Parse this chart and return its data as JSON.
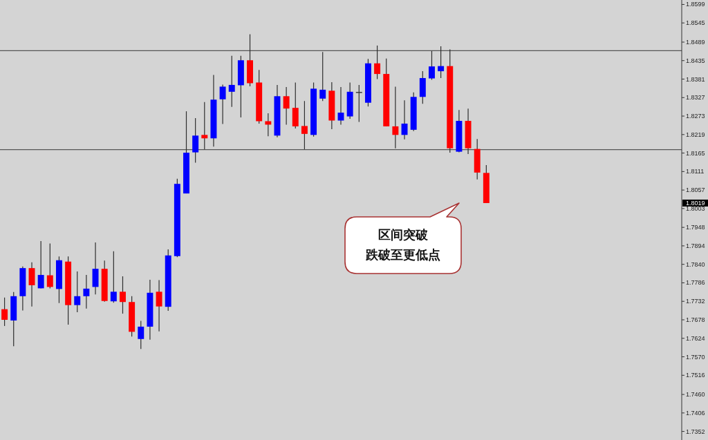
{
  "chart_data": {
    "type": "candlestick",
    "categories": [
      null,
      null,
      null,
      null,
      null,
      null,
      null,
      null,
      null,
      null,
      null,
      null,
      null,
      null,
      null,
      null,
      null,
      null,
      null,
      null,
      null,
      null,
      null,
      null,
      null,
      null,
      null,
      null,
      null,
      null,
      null,
      null,
      null,
      null,
      null,
      null,
      null,
      null,
      null,
      null,
      null,
      null,
      null,
      null,
      null,
      null,
      null,
      null,
      null,
      null,
      null,
      null,
      null,
      null,
      null,
      null,
      null,
      null,
      null,
      null,
      null,
      null,
      null,
      null,
      null,
      null,
      null,
      null,
      null,
      null,
      null,
      null,
      null,
      null,
      null
    ],
    "ohlc": [
      [
        1.7709,
        1.7743,
        1.766,
        1.7678
      ],
      [
        1.7676,
        1.7759,
        1.7601,
        1.7747
      ],
      [
        1.7747,
        1.7834,
        1.7705,
        1.7829
      ],
      [
        1.7829,
        1.7846,
        1.7717,
        1.7779
      ],
      [
        1.777,
        1.7908,
        1.777,
        1.7809
      ],
      [
        1.7808,
        1.7901,
        1.777,
        1.7774
      ],
      [
        1.7768,
        1.7863,
        1.7727,
        1.7852
      ],
      [
        1.7848,
        1.7863,
        1.7664,
        1.7721
      ],
      [
        1.7721,
        1.7819,
        1.77,
        1.7747
      ],
      [
        1.7747,
        1.7809,
        1.7711,
        1.7769
      ],
      [
        1.7774,
        1.7904,
        1.7752,
        1.7827
      ],
      [
        1.7827,
        1.7851,
        1.7731,
        1.7733
      ],
      [
        1.7732,
        1.7878,
        1.7728,
        1.776
      ],
      [
        1.776,
        1.7805,
        1.7696,
        1.773
      ],
      [
        1.773,
        1.7747,
        1.7629,
        1.7643
      ],
      [
        1.7622,
        1.7675,
        1.7593,
        1.7658
      ],
      [
        1.7658,
        1.7795,
        1.762,
        1.7757
      ],
      [
        1.776,
        1.7794,
        1.7644,
        1.7717
      ],
      [
        1.7716,
        1.7884,
        1.7704,
        1.7866
      ],
      [
        1.7864,
        1.809,
        1.7861,
        1.8075
      ],
      [
        1.8047,
        1.8287,
        1.8047,
        1.8166
      ],
      [
        1.8167,
        1.8267,
        1.8137,
        1.8216
      ],
      [
        1.8218,
        1.8314,
        1.8176,
        1.8208
      ],
      [
        1.8208,
        1.8393,
        1.8184,
        1.8321
      ],
      [
        1.8322,
        1.8365,
        1.825,
        1.8359
      ],
      [
        1.8344,
        1.8449,
        1.83,
        1.8364
      ],
      [
        1.8363,
        1.8449,
        1.8269,
        1.8436
      ],
      [
        1.8436,
        1.8512,
        1.836,
        1.8369
      ],
      [
        1.8371,
        1.8408,
        1.8251,
        1.8258
      ],
      [
        1.8258,
        1.8281,
        1.8214,
        1.8248
      ],
      [
        1.8216,
        1.8364,
        1.8211,
        1.8331
      ],
      [
        1.8331,
        1.8358,
        1.8248,
        1.8295
      ],
      [
        1.8297,
        1.8371,
        1.8237,
        1.8243
      ],
      [
        1.8244,
        1.8317,
        1.8176,
        1.8221
      ],
      [
        1.8218,
        1.8371,
        1.8213,
        1.8353
      ],
      [
        1.8324,
        1.846,
        1.8317,
        1.835
      ],
      [
        1.8347,
        1.8372,
        1.8235,
        1.826
      ],
      [
        1.826,
        1.8358,
        1.8248,
        1.8283
      ],
      [
        1.8272,
        1.8371,
        1.8265,
        1.8344
      ],
      [
        1.8342,
        1.8364,
        1.8256,
        1.8342
      ],
      [
        1.8312,
        1.844,
        1.8301,
        1.8427
      ],
      [
        1.8427,
        1.8479,
        1.8381,
        1.8396
      ],
      [
        1.8396,
        1.8441,
        1.8243,
        1.8243
      ],
      [
        1.8243,
        1.8359,
        1.8179,
        1.8218
      ],
      [
        1.8218,
        1.8319,
        1.8205,
        1.8251
      ],
      [
        1.8233,
        1.8342,
        1.8229,
        1.8329
      ],
      [
        1.8329,
        1.8404,
        1.8309,
        1.8384
      ],
      [
        1.8383,
        1.8463,
        1.8379,
        1.8418
      ],
      [
        1.8404,
        1.8477,
        1.8384,
        1.8419
      ],
      [
        1.8419,
        1.8468,
        1.8166,
        1.8179
      ],
      [
        1.8169,
        1.8291,
        1.8167,
        1.8259
      ],
      [
        1.8259,
        1.8295,
        1.8162,
        1.8179
      ],
      [
        1.8177,
        1.8206,
        1.8088,
        1.8108
      ],
      [
        1.8107,
        1.813,
        1.8019,
        1.8019
      ],
      null,
      null,
      null,
      null,
      null,
      null,
      null,
      null,
      null,
      null,
      null,
      null,
      null,
      null,
      null,
      null,
      null,
      null,
      null,
      null,
      null
    ],
    "colors": [
      "#ff0000",
      "#0000ff",
      "#0000ff",
      "#ff0000",
      "#0000ff",
      "#ff0000",
      "#0000ff",
      "#ff0000",
      "#0000ff",
      "#0000ff",
      "#0000ff",
      "#ff0000",
      "#0000ff",
      "#ff0000",
      "#ff0000",
      "#0000ff",
      "#0000ff",
      "#ff0000",
      "#0000ff",
      "#0000ff",
      "#0000ff",
      "#0000ff",
      "#ff0000",
      "#0000ff",
      "#0000ff",
      "#0000ff",
      "#0000ff",
      "#ff0000",
      "#ff0000",
      "#ff0000",
      "#0000ff",
      "#ff0000",
      "#ff0000",
      "#ff0000",
      "#0000ff",
      "#0000ff",
      "#ff0000",
      "#0000ff",
      "#0000ff",
      "#333333",
      "#0000ff",
      "#ff0000",
      "#ff0000",
      "#ff0000",
      "#0000ff",
      "#0000ff",
      "#0000ff",
      "#0000ff",
      "#0000ff",
      "#ff0000",
      "#0000ff",
      "#ff0000",
      "#ff0000",
      "#ff0000",
      null,
      null,
      null,
      null,
      null,
      null,
      null,
      null,
      null,
      null,
      null,
      null,
      null,
      null,
      null,
      null,
      null,
      null,
      null,
      null,
      null
    ],
    "ylim": [
      1.7327,
      1.8612
    ],
    "yticks": [
      1.8599,
      1.8545,
      1.8489,
      1.8435,
      1.8381,
      1.8327,
      1.8273,
      1.8219,
      1.8165,
      1.8111,
      1.8057,
      1.8003,
      1.7948,
      1.7894,
      {
        "value": 1.784,
        "label": "1.7840"
      },
      1.7786,
      1.7732,
      1.7678,
      1.7624,
      {
        "value": 1.757,
        "label": "1.7570"
      },
      1.7516,
      {
        "value": 1.746,
        "label": "1.7460"
      },
      1.7406,
      1.7352
    ],
    "tick_labels": "y",
    "ref_lines": [
      {
        "axis": "y",
        "value": 1.8464,
        "color": "#555555"
      },
      {
        "axis": "y",
        "value": 1.8175,
        "color": "#555555"
      }
    ],
    "annotations": [
      "1.8019",
      "区间突破",
      "跌破至更低点"
    ]
  }
}
